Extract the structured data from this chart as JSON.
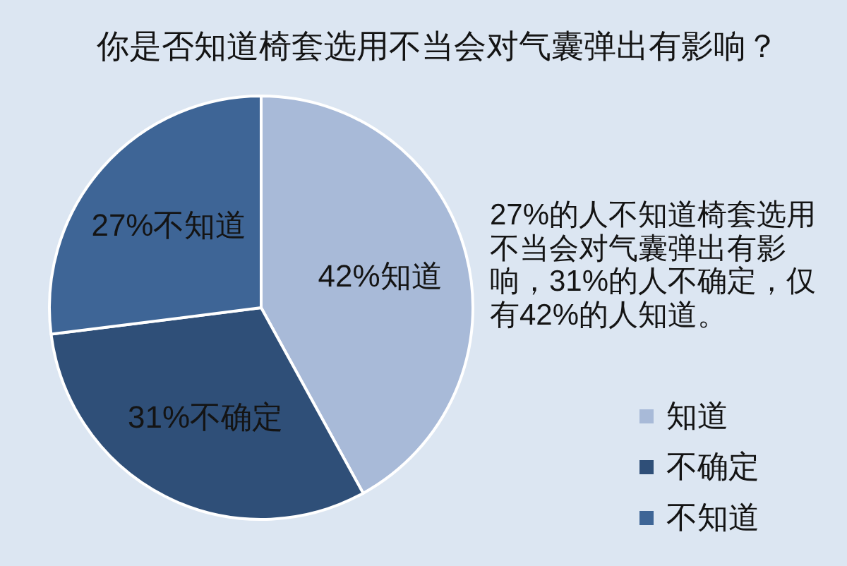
{
  "chart_data": {
    "type": "pie",
    "title": "你是否知道椅套选用不当会对气囊弹出有影响？",
    "categories": [
      "知道",
      "不确定",
      "不知道"
    ],
    "values": [
      42,
      31,
      27
    ],
    "colors": [
      "#a8bad8",
      "#2f4f78",
      "#3e6596"
    ],
    "value_labels": [
      "42%知道",
      "31%不确定",
      "27%不知道"
    ],
    "legend": "bottom right",
    "annotations": [
      "27%的人不知道椅套选用不当会对气囊弹出有影响，31%的人不确定，仅有42%的人知道。"
    ]
  }
}
